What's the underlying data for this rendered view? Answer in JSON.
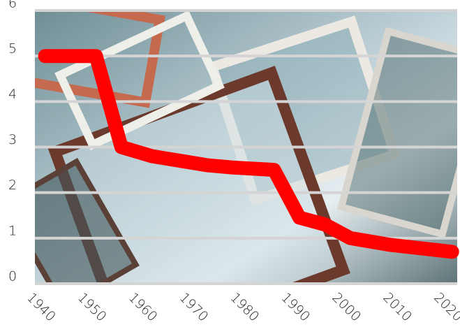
{
  "chart_data": {
    "type": "line",
    "x": [
      1940,
      1950,
      1955,
      1961,
      1972,
      1977,
      1985,
      1990,
      1995,
      2000,
      2008,
      2020
    ],
    "series": [
      {
        "color": "#ff0000",
        "values": [
          5.0,
          5.0,
          3.0,
          2.8,
          2.6,
          2.55,
          2.5,
          1.45,
          1.3,
          1.0,
          0.85,
          0.7
        ]
      }
    ],
    "xlim": [
      1938,
      2021
    ],
    "xticks": [
      1940,
      1950,
      1960,
      1970,
      1980,
      1990,
      2000,
      2010,
      2020
    ],
    "ylim": [
      0,
      6
    ],
    "yticks": [
      0,
      1,
      2,
      3,
      4,
      5,
      6
    ],
    "grid": true
  }
}
